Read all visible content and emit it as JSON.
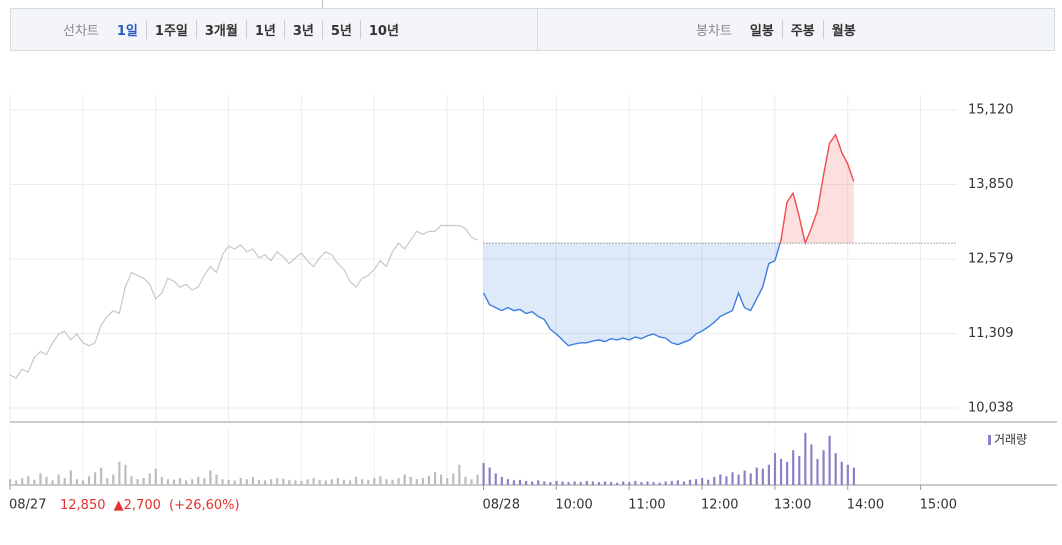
{
  "tabs": {
    "line_label": "선차트",
    "line_options": [
      "1일",
      "1주일",
      "3개월",
      "1년",
      "3년",
      "5년",
      "10년"
    ],
    "selected_index": 0,
    "candle_label": "봉차트",
    "candle_options": [
      "일봉",
      "주봉",
      "월봉"
    ]
  },
  "info": {
    "close": "12,850",
    "change": "▲2,700",
    "change_pct": "(+26,60%)"
  },
  "chart_data": [
    {
      "type": "line",
      "categories": [
        "08/27",
        null,
        null,
        null,
        null,
        null,
        null,
        null,
        null,
        null,
        null,
        null,
        null,
        null,
        null,
        null,
        null,
        null,
        null,
        null,
        null,
        null,
        null,
        null,
        null,
        null,
        null,
        null,
        null,
        null,
        null,
        null,
        null,
        null,
        null,
        null,
        null,
        null,
        null,
        null,
        null,
        null,
        null,
        null,
        null,
        null,
        null,
        null,
        null,
        null,
        null,
        null,
        null,
        null,
        null,
        null,
        null,
        null,
        null,
        null,
        null,
        null,
        null,
        null,
        null,
        null,
        null,
        null,
        null,
        null,
        null,
        null,
        null,
        null,
        null,
        null,
        null,
        null,
        "08/28",
        null,
        null,
        null,
        null,
        null,
        null,
        null,
        null,
        null,
        null,
        null,
        "10:00",
        null,
        null,
        null,
        null,
        null,
        null,
        null,
        null,
        null,
        null,
        null,
        "11:00",
        null,
        null,
        null,
        null,
        null,
        null,
        null,
        null,
        null,
        null,
        null,
        "12:00",
        null,
        null,
        null,
        null,
        null,
        null,
        null,
        null,
        null,
        null,
        null,
        "13:00",
        null,
        null,
        null,
        null,
        null,
        null,
        null,
        null,
        null,
        null,
        null,
        "14:00",
        null,
        null,
        null,
        null,
        null,
        null,
        null,
        null,
        null,
        null,
        null,
        "15:00",
        null,
        null,
        null,
        null,
        null
      ],
      "series": [
        {
          "color": "#c8c8c8",
          "values": [
            10600,
            10550,
            10700,
            10650,
            10900,
            11000,
            10950,
            11150,
            11300,
            11350,
            11200,
            11300,
            11150,
            11100,
            11150,
            11450,
            11600,
            11700,
            11650,
            12100,
            12350,
            12300,
            12250,
            12150,
            11900,
            12000,
            12250,
            12200,
            12100,
            12150,
            12050,
            12100,
            12300,
            12450,
            12350,
            12650,
            12800,
            12750,
            12820,
            12700,
            12750,
            12600,
            12650,
            12550,
            12700,
            12620,
            12500,
            12600,
            12680,
            12550,
            12450,
            12600,
            12700,
            12650,
            12500,
            12400,
            12200,
            12100,
            12250,
            12300,
            12400,
            12550,
            12450,
            12700,
            12850,
            12750,
            12900,
            13050,
            13000,
            13050,
            13050,
            13150,
            13150,
            13150,
            13150,
            13100,
            12950,
            12900,
            null,
            null,
            null,
            null,
            null,
            null,
            null,
            null,
            null,
            null,
            null,
            null,
            null,
            null,
            null,
            null,
            null,
            null,
            null,
            null,
            null,
            null,
            null,
            null,
            null,
            null,
            null,
            null,
            null,
            null,
            null,
            null,
            null,
            null,
            null,
            null,
            null,
            null,
            null,
            null,
            null,
            null,
            null,
            null,
            null,
            null,
            null,
            null,
            null,
            null,
            null,
            null,
            null,
            null,
            null,
            null,
            null,
            null,
            null,
            null,
            null,
            null,
            null,
            null,
            null,
            null,
            null,
            null,
            null,
            null,
            null,
            null,
            null,
            null,
            null,
            null,
            null,
            null
          ]
        },
        {
          "color": "#3d7ee0",
          "up_color": "#f04b4b",
          "values": [
            null,
            null,
            null,
            null,
            null,
            null,
            null,
            null,
            null,
            null,
            null,
            null,
            null,
            null,
            null,
            null,
            null,
            null,
            null,
            null,
            null,
            null,
            null,
            null,
            null,
            null,
            null,
            null,
            null,
            null,
            null,
            null,
            null,
            null,
            null,
            null,
            null,
            null,
            null,
            null,
            null,
            null,
            null,
            null,
            null,
            null,
            null,
            null,
            null,
            null,
            null,
            null,
            null,
            null,
            null,
            null,
            null,
            null,
            null,
            null,
            null,
            null,
            null,
            null,
            null,
            null,
            null,
            null,
            null,
            null,
            null,
            null,
            null,
            null,
            null,
            null,
            null,
            null,
            12000,
            11800,
            11750,
            11700,
            11750,
            11700,
            11720,
            11650,
            11680,
            11600,
            11550,
            11380,
            11300,
            11200,
            11100,
            11130,
            11150,
            11150,
            11180,
            11200,
            11170,
            11220,
            11200,
            11230,
            11200,
            11250,
            11220,
            11270,
            11300,
            11250,
            11230,
            11150,
            11120,
            11160,
            11200,
            11300,
            11350,
            11420,
            11500,
            11600,
            11650,
            11700,
            12000,
            11750,
            11700,
            11900,
            12100,
            12500,
            12550,
            12900,
            13550,
            13700,
            13300,
            12850,
            13100,
            13400,
            14000,
            14550,
            14700,
            14400,
            14200,
            13900,
            null,
            null,
            null,
            null,
            null,
            null,
            null,
            null,
            null,
            null,
            null,
            null,
            null,
            null,
            null,
            null
          ]
        }
      ],
      "reference": 12850,
      "ylim": [
        9800,
        15375
      ],
      "yticks": [
        {
          "value": 10038,
          "label": "10,038"
        },
        {
          "value": 11309,
          "label": "11,309"
        },
        {
          "value": 12579,
          "label": "12,579"
        },
        {
          "value": 13850,
          "label": "13,850"
        },
        {
          "value": 15120,
          "label": "15,120"
        }
      ],
      "grid": true
    },
    {
      "type": "bar",
      "ylim": [
        0,
        100
      ],
      "series": [
        {
          "color": "#bdbdbd",
          "values": [
            10,
            8,
            12,
            15,
            9,
            20,
            14,
            8,
            18,
            12,
            25,
            10,
            8,
            15,
            22,
            30,
            12,
            18,
            40,
            35,
            15,
            10,
            12,
            20,
            28,
            14,
            10,
            9,
            12,
            8,
            10,
            14,
            12,
            25,
            18,
            10,
            9,
            8,
            12,
            10,
            14,
            9,
            8,
            10,
            12,
            11,
            9,
            8,
            7,
            10,
            12,
            9,
            8,
            10,
            12,
            9,
            8,
            14,
            10,
            9,
            12,
            15,
            10,
            9,
            12,
            18,
            14,
            10,
            12,
            16,
            22,
            18,
            12,
            20,
            35,
            14,
            10,
            18,
            null,
            null,
            null,
            null,
            null,
            null,
            null,
            null,
            null,
            null,
            null,
            null,
            null,
            null,
            null,
            null,
            null,
            null,
            null,
            null,
            null,
            null,
            null,
            null,
            null,
            null,
            null,
            null,
            null,
            null,
            null,
            null,
            null,
            null,
            null,
            null,
            null,
            null,
            null,
            null,
            null,
            null,
            null,
            null,
            null,
            null,
            null,
            null,
            null,
            null,
            null,
            null,
            null,
            null,
            null,
            null,
            null,
            null,
            null,
            null,
            null,
            null,
            null,
            null,
            null,
            null,
            null,
            null,
            null,
            null,
            null,
            null,
            null,
            null,
            null,
            null,
            null,
            null
          ]
        },
        {
          "name": "거래량",
          "color": "#8f7fc9",
          "values": [
            null,
            null,
            null,
            null,
            null,
            null,
            null,
            null,
            null,
            null,
            null,
            null,
            null,
            null,
            null,
            null,
            null,
            null,
            null,
            null,
            null,
            null,
            null,
            null,
            null,
            null,
            null,
            null,
            null,
            null,
            null,
            null,
            null,
            null,
            null,
            null,
            null,
            null,
            null,
            null,
            null,
            null,
            null,
            null,
            null,
            null,
            null,
            null,
            null,
            null,
            null,
            null,
            null,
            null,
            null,
            null,
            null,
            null,
            null,
            null,
            null,
            null,
            null,
            null,
            null,
            null,
            null,
            null,
            null,
            null,
            null,
            null,
            null,
            null,
            null,
            null,
            null,
            null,
            38,
            30,
            20,
            14,
            10,
            8,
            9,
            7,
            6,
            8,
            6,
            5,
            7,
            6,
            5,
            6,
            5,
            7,
            6,
            5,
            6,
            5,
            4,
            6,
            5,
            7,
            5,
            6,
            5,
            4,
            6,
            7,
            8,
            6,
            9,
            10,
            12,
            9,
            14,
            18,
            15,
            22,
            18,
            25,
            20,
            30,
            28,
            35,
            55,
            45,
            40,
            60,
            50,
            90,
            70,
            45,
            60,
            85,
            55,
            40,
            35,
            30,
            null,
            null,
            null,
            null,
            null,
            null,
            null,
            null,
            null,
            null,
            null,
            null,
            null,
            null,
            null,
            null
          ]
        }
      ]
    }
  ]
}
